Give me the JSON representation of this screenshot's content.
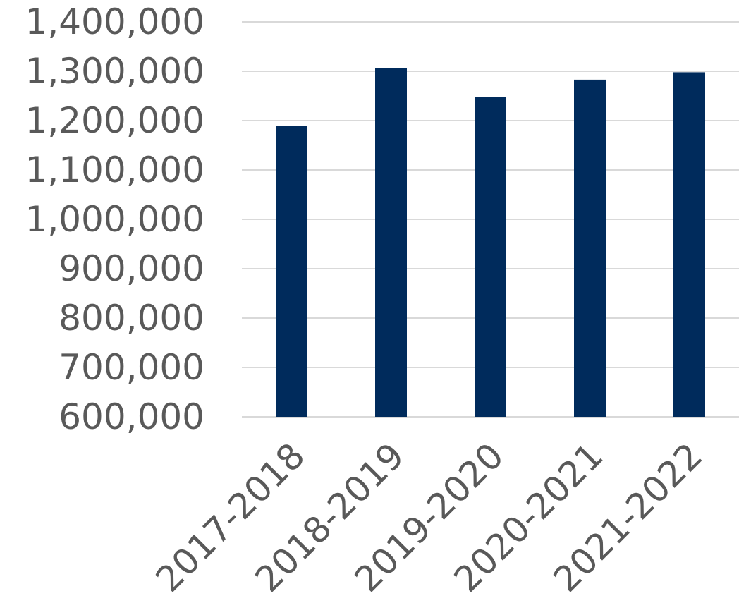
{
  "chart_data": {
    "type": "bar",
    "categories": [
      "2017-2018",
      "2018-2019",
      "2019-2020",
      "2020-2021",
      "2021-2022"
    ],
    "values": [
      1190000,
      1306000,
      1248000,
      1283000,
      1298000
    ],
    "ylim": [
      600000,
      1400000
    ],
    "yticks": [
      "600,000",
      "700,000",
      "800,000",
      "900,000",
      "1,000,000",
      "1,100,000",
      "1,200,000",
      "1,300,000",
      "1,400,000"
    ],
    "grid": true,
    "bar_color": "#002b5c",
    "grid_color": "#d9d9d9",
    "text_color": "#595959"
  }
}
